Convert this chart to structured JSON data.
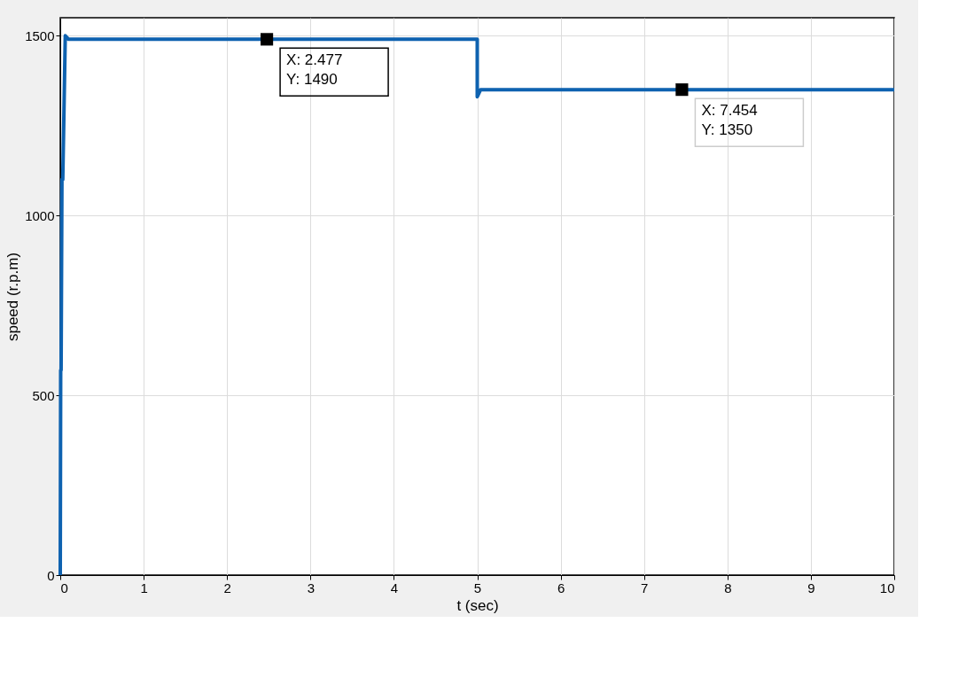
{
  "chart_data": {
    "type": "line",
    "xlabel": "t (sec)",
    "ylabel": "speed (r.p.m)",
    "x": [
      0,
      0.005,
      0.01,
      0.02,
      0.03,
      0.06,
      0.1,
      4.99,
      5.0,
      5.0,
      5.04,
      5.1,
      10
    ],
    "series": [
      {
        "color": "#0e62b0",
        "values": [
          0,
          570,
          570,
          1100,
          1100,
          1500,
          1490,
          1490,
          1490,
          1330,
          1350,
          1350,
          1350
        ]
      }
    ],
    "xlim": [
      0,
      10
    ],
    "ylim": [
      0,
      1550
    ],
    "xticks": [
      0,
      1,
      2,
      3,
      4,
      5,
      6,
      7,
      8,
      9,
      10
    ],
    "yticks": [
      0,
      500,
      1000,
      1500
    ],
    "grid": true,
    "marker": "none",
    "line_style": "solid",
    "annotations": [
      {
        "text": "X: 2.477\nY: 1490",
        "x": 2.477,
        "y": 1490
      },
      {
        "text": "X: 7.454\nY: 1350",
        "x": 7.454,
        "y": 1350
      }
    ]
  }
}
